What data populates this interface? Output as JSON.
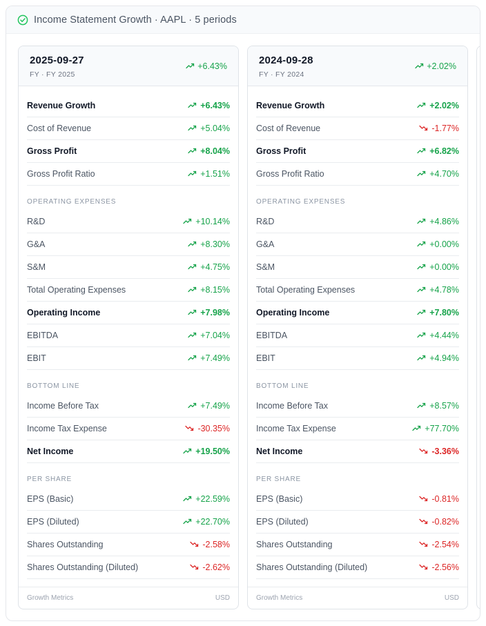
{
  "header": {
    "title": "Income Statement Growth · AAPL · 5 periods",
    "status_icon": "check-circle-icon",
    "status_color": "#22c55e"
  },
  "colors": {
    "positive": "#16a34a",
    "negative": "#dc2626"
  },
  "cards": [
    {
      "date": "2025-09-27",
      "period": "FY · FY 2025",
      "headline": "+6.43%",
      "headline_dir": "up",
      "footer_left": "Growth Metrics",
      "footer_right": "USD",
      "rows": [
        {
          "type": "row",
          "label": "Revenue Growth",
          "value": "+6.43%",
          "dir": "up",
          "bold": true
        },
        {
          "type": "row",
          "label": "Cost of Revenue",
          "value": "+5.04%",
          "dir": "up",
          "bold": false
        },
        {
          "type": "row",
          "label": "Gross Profit",
          "value": "+8.04%",
          "dir": "up",
          "bold": true
        },
        {
          "type": "row",
          "label": "Gross Profit Ratio",
          "value": "+1.51%",
          "dir": "up",
          "bold": false
        },
        {
          "type": "section",
          "label": "OPERATING EXPENSES"
        },
        {
          "type": "row",
          "label": "R&D",
          "value": "+10.14%",
          "dir": "up",
          "bold": false
        },
        {
          "type": "row",
          "label": "G&A",
          "value": "+8.30%",
          "dir": "up",
          "bold": false
        },
        {
          "type": "row",
          "label": "S&M",
          "value": "+4.75%",
          "dir": "up",
          "bold": false
        },
        {
          "type": "row",
          "label": "Total Operating Expenses",
          "value": "+8.15%",
          "dir": "up",
          "bold": false
        },
        {
          "type": "row",
          "label": "Operating Income",
          "value": "+7.98%",
          "dir": "up",
          "bold": true
        },
        {
          "type": "row",
          "label": "EBITDA",
          "value": "+7.04%",
          "dir": "up",
          "bold": false
        },
        {
          "type": "row",
          "label": "EBIT",
          "value": "+7.49%",
          "dir": "up",
          "bold": false
        },
        {
          "type": "section",
          "label": "BOTTOM LINE"
        },
        {
          "type": "row",
          "label": "Income Before Tax",
          "value": "+7.49%",
          "dir": "up",
          "bold": false
        },
        {
          "type": "row",
          "label": "Income Tax Expense",
          "value": "-30.35%",
          "dir": "down",
          "bold": false
        },
        {
          "type": "row",
          "label": "Net Income",
          "value": "+19.50%",
          "dir": "up",
          "bold": true
        },
        {
          "type": "section",
          "label": "PER SHARE"
        },
        {
          "type": "row",
          "label": "EPS (Basic)",
          "value": "+22.59%",
          "dir": "up",
          "bold": false
        },
        {
          "type": "row",
          "label": "EPS (Diluted)",
          "value": "+22.70%",
          "dir": "up",
          "bold": false
        },
        {
          "type": "row",
          "label": "Shares Outstanding",
          "value": "-2.58%",
          "dir": "down",
          "bold": false
        },
        {
          "type": "row",
          "label": "Shares Outstanding (Diluted)",
          "value": "-2.62%",
          "dir": "down",
          "bold": false
        }
      ]
    },
    {
      "date": "2024-09-28",
      "period": "FY · FY 2024",
      "headline": "+2.02%",
      "headline_dir": "up",
      "footer_left": "Growth Metrics",
      "footer_right": "USD",
      "rows": [
        {
          "type": "row",
          "label": "Revenue Growth",
          "value": "+2.02%",
          "dir": "up",
          "bold": true
        },
        {
          "type": "row",
          "label": "Cost of Revenue",
          "value": "-1.77%",
          "dir": "down",
          "bold": false
        },
        {
          "type": "row",
          "label": "Gross Profit",
          "value": "+6.82%",
          "dir": "up",
          "bold": true
        },
        {
          "type": "row",
          "label": "Gross Profit Ratio",
          "value": "+4.70%",
          "dir": "up",
          "bold": false
        },
        {
          "type": "section",
          "label": "OPERATING EXPENSES"
        },
        {
          "type": "row",
          "label": "R&D",
          "value": "+4.86%",
          "dir": "up",
          "bold": false
        },
        {
          "type": "row",
          "label": "G&A",
          "value": "+0.00%",
          "dir": "up",
          "bold": false
        },
        {
          "type": "row",
          "label": "S&M",
          "value": "+0.00%",
          "dir": "up",
          "bold": false
        },
        {
          "type": "row",
          "label": "Total Operating Expenses",
          "value": "+4.78%",
          "dir": "up",
          "bold": false
        },
        {
          "type": "row",
          "label": "Operating Income",
          "value": "+7.80%",
          "dir": "up",
          "bold": true
        },
        {
          "type": "row",
          "label": "EBITDA",
          "value": "+4.44%",
          "dir": "up",
          "bold": false
        },
        {
          "type": "row",
          "label": "EBIT",
          "value": "+4.94%",
          "dir": "up",
          "bold": false
        },
        {
          "type": "section",
          "label": "BOTTOM LINE"
        },
        {
          "type": "row",
          "label": "Income Before Tax",
          "value": "+8.57%",
          "dir": "up",
          "bold": false
        },
        {
          "type": "row",
          "label": "Income Tax Expense",
          "value": "+77.70%",
          "dir": "up",
          "bold": false
        },
        {
          "type": "row",
          "label": "Net Income",
          "value": "-3.36%",
          "dir": "down",
          "bold": true
        },
        {
          "type": "section",
          "label": "PER SHARE"
        },
        {
          "type": "row",
          "label": "EPS (Basic)",
          "value": "-0.81%",
          "dir": "down",
          "bold": false
        },
        {
          "type": "row",
          "label": "EPS (Diluted)",
          "value": "-0.82%",
          "dir": "down",
          "bold": false
        },
        {
          "type": "row",
          "label": "Shares Outstanding",
          "value": "-2.54%",
          "dir": "down",
          "bold": false
        },
        {
          "type": "row",
          "label": "Shares Outstanding (Diluted)",
          "value": "-2.56%",
          "dir": "down",
          "bold": false
        }
      ]
    }
  ]
}
